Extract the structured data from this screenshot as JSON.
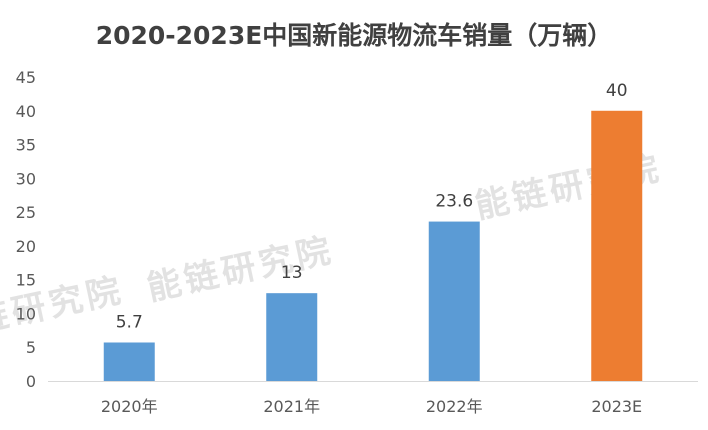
{
  "chart_data": {
    "type": "bar",
    "title": "2020-2023E中国新能源物流车销量（万辆）",
    "categories": [
      "2020年",
      "2021年",
      "2022年",
      "2023E"
    ],
    "values": [
      5.7,
      13,
      23.6,
      40
    ],
    "value_labels": [
      "5.7",
      "13",
      "23.6",
      "40"
    ],
    "bar_colors": [
      "#5b9bd5",
      "#5b9bd5",
      "#5b9bd5",
      "#ed7d31"
    ],
    "ylim": [
      0,
      45
    ],
    "yticks": [
      "0",
      "5",
      "10",
      "15",
      "20",
      "25",
      "30",
      "35",
      "40",
      "45"
    ],
    "grid": false,
    "xlabel": "",
    "ylabel": ""
  },
  "watermark": {
    "text": "能链研究院"
  }
}
